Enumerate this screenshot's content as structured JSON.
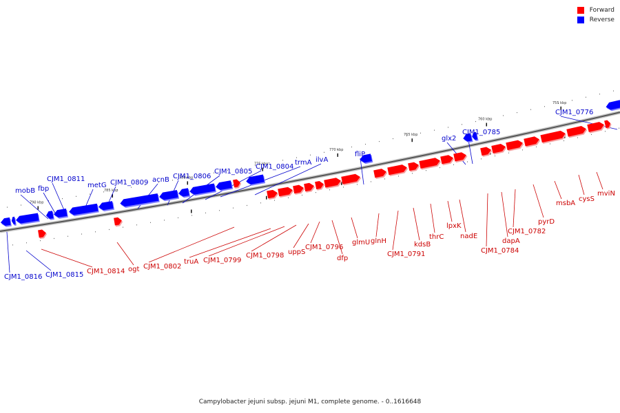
{
  "title": "Campylobacter jejuni subsp. jejuni M1, complete genome. - 0..1616648",
  "legend": {
    "forward": {
      "label": "Forward",
      "color": "#ff0000"
    },
    "reverse": {
      "label": "Reverse",
      "color": "#0000ff"
    }
  },
  "scale_labels": [
    "790 kbp",
    "785 kbp",
    "780 kbp",
    "775 kbp",
    "770 kbp",
    "765 kbp",
    "760 kbp",
    "755 kbp"
  ],
  "genes": [
    {
      "name": "mobB",
      "strand": "reverse"
    },
    {
      "name": "fbp",
      "strand": "reverse"
    },
    {
      "name": "CJM1_0811",
      "strand": "reverse"
    },
    {
      "name": "metG",
      "strand": "reverse"
    },
    {
      "name": "CJM1_0809",
      "strand": "reverse"
    },
    {
      "name": "acnB",
      "strand": "reverse"
    },
    {
      "name": "CJM1_0806",
      "strand": "reverse"
    },
    {
      "name": "CJM1_0805",
      "strand": "reverse"
    },
    {
      "name": "CJM1_0804",
      "strand": "reverse"
    },
    {
      "name": "trmA",
      "strand": "reverse"
    },
    {
      "name": "ilvA",
      "strand": "reverse"
    },
    {
      "name": "fliP",
      "strand": "reverse"
    },
    {
      "name": "glx2",
      "strand": "reverse"
    },
    {
      "name": "CJM1_0785",
      "strand": "reverse"
    },
    {
      "name": "CJM1_0776",
      "strand": "reverse"
    },
    {
      "name": "CJM1_0816",
      "strand": "reverse"
    },
    {
      "name": "CJM1_0815",
      "strand": "reverse"
    },
    {
      "name": "CJM1_0814",
      "strand": "forward"
    },
    {
      "name": "ogt",
      "strand": "forward"
    },
    {
      "name": "CJM1_0802",
      "strand": "forward"
    },
    {
      "name": "truA",
      "strand": "forward"
    },
    {
      "name": "CJM1_0799",
      "strand": "forward"
    },
    {
      "name": "CJM1_0798",
      "strand": "forward"
    },
    {
      "name": "uppS",
      "strand": "forward"
    },
    {
      "name": "CJM1_0796",
      "strand": "forward"
    },
    {
      "name": "dfp",
      "strand": "forward"
    },
    {
      "name": "glmU",
      "strand": "forward"
    },
    {
      "name": "glnH",
      "strand": "forward"
    },
    {
      "name": "CJM1_0791",
      "strand": "forward"
    },
    {
      "name": "kdsB",
      "strand": "forward"
    },
    {
      "name": "thrC",
      "strand": "forward"
    },
    {
      "name": "lpxK",
      "strand": "forward"
    },
    {
      "name": "nadE",
      "strand": "forward"
    },
    {
      "name": "CJM1_0784",
      "strand": "forward"
    },
    {
      "name": "dapA",
      "strand": "forward"
    },
    {
      "name": "CJM1_0782",
      "strand": "forward"
    },
    {
      "name": "pyrD",
      "strand": "forward"
    },
    {
      "name": "msbA",
      "strand": "forward"
    },
    {
      "name": "cysS",
      "strand": "forward"
    },
    {
      "name": "mviN",
      "strand": "forward"
    }
  ]
}
